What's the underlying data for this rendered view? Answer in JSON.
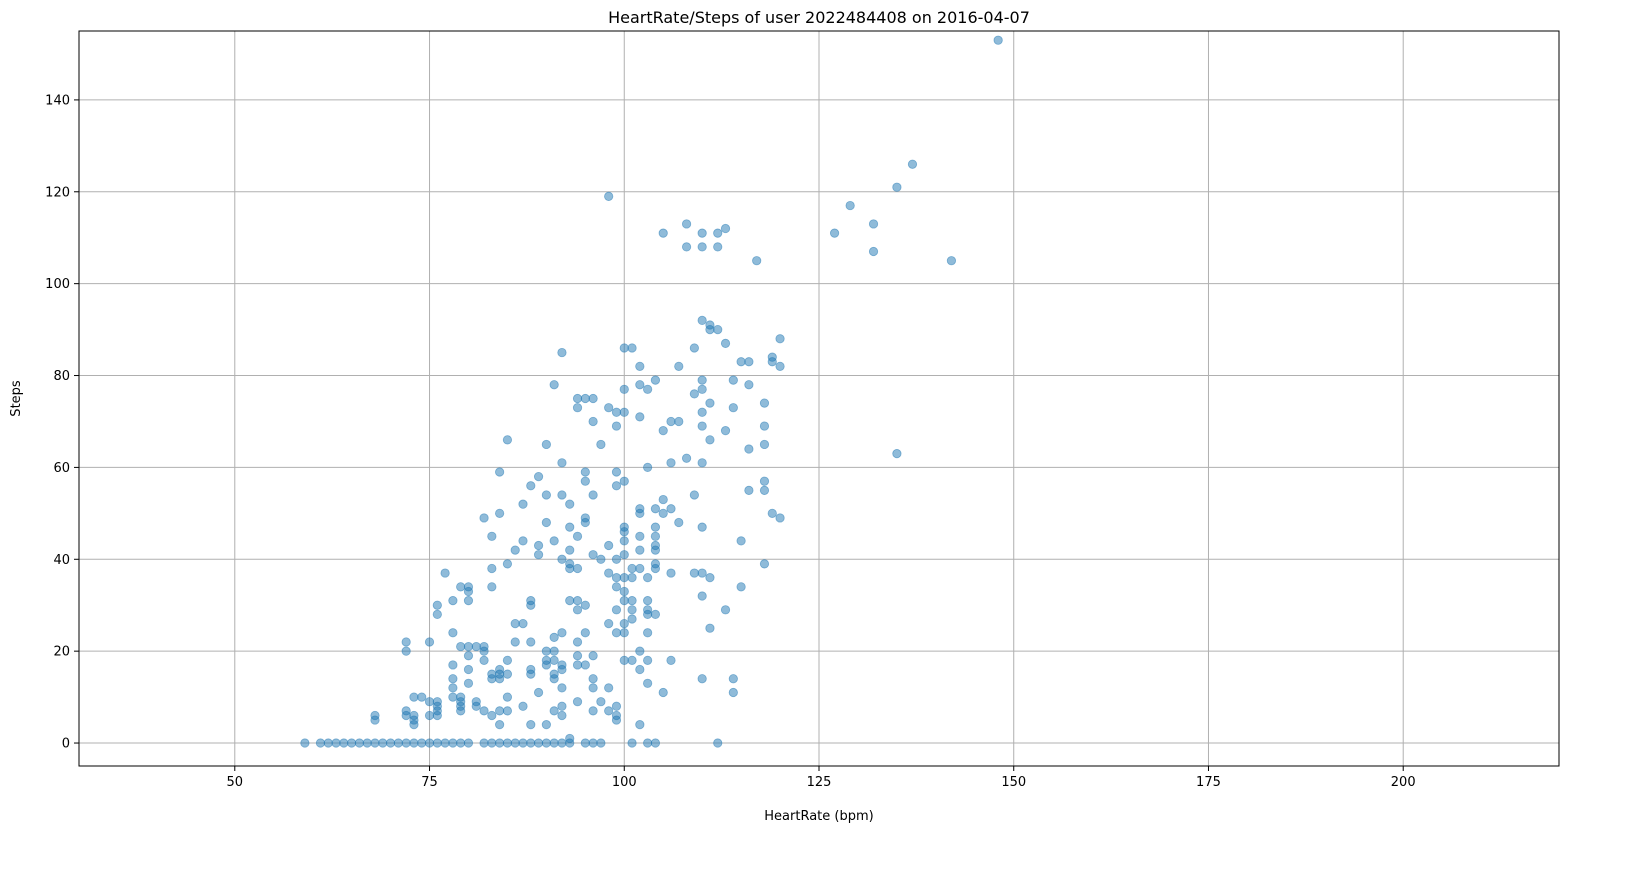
{
  "chart_data": {
    "type": "scatter",
    "title": "HeartRate/Steps of user 2022484408 on 2016-04-07",
    "xlabel": "HeartRate (bpm)",
    "ylabel": "Steps",
    "xlim": [
      30,
      220
    ],
    "ylim": [
      -5,
      155
    ],
    "xticks": [
      50,
      75,
      100,
      125,
      150,
      175,
      200
    ],
    "yticks": [
      0,
      20,
      40,
      60,
      80,
      100,
      120,
      140
    ],
    "grid": true,
    "legend": "none",
    "marker_color": "#1f77b4",
    "marker_alpha": 0.5,
    "points": [
      [
        59,
        0
      ],
      [
        61,
        0
      ],
      [
        62,
        0
      ],
      [
        63,
        0
      ],
      [
        64,
        0
      ],
      [
        65,
        0
      ],
      [
        66,
        0
      ],
      [
        67,
        0
      ],
      [
        68,
        0
      ],
      [
        69,
        0
      ],
      [
        70,
        0
      ],
      [
        71,
        0
      ],
      [
        72,
        0
      ],
      [
        73,
        0
      ],
      [
        74,
        0
      ],
      [
        75,
        0
      ],
      [
        76,
        0
      ],
      [
        77,
        0
      ],
      [
        78,
        0
      ],
      [
        79,
        0
      ],
      [
        80,
        0
      ],
      [
        82,
        0
      ],
      [
        83,
        0
      ],
      [
        84,
        0
      ],
      [
        85,
        0
      ],
      [
        86,
        0
      ],
      [
        87,
        0
      ],
      [
        88,
        0
      ],
      [
        89,
        0
      ],
      [
        90,
        0
      ],
      [
        91,
        0
      ],
      [
        92,
        0
      ],
      [
        93,
        0
      ],
      [
        95,
        0
      ],
      [
        96,
        0
      ],
      [
        97,
        0
      ],
      [
        101,
        0
      ],
      [
        103,
        0
      ],
      [
        104,
        0
      ],
      [
        112,
        0
      ],
      [
        68,
        5
      ],
      [
        68,
        6
      ],
      [
        72,
        6
      ],
      [
        72,
        7
      ],
      [
        72,
        20
      ],
      [
        72,
        22
      ],
      [
        73,
        4
      ],
      [
        73,
        5
      ],
      [
        73,
        6
      ],
      [
        73,
        10
      ],
      [
        74,
        10
      ],
      [
        75,
        6
      ],
      [
        75,
        9
      ],
      [
        75,
        22
      ],
      [
        76,
        6
      ],
      [
        76,
        7
      ],
      [
        76,
        8
      ],
      [
        76,
        9
      ],
      [
        76,
        28
      ],
      [
        76,
        30
      ],
      [
        77,
        37
      ],
      [
        78,
        10
      ],
      [
        78,
        12
      ],
      [
        78,
        14
      ],
      [
        78,
        17
      ],
      [
        78,
        24
      ],
      [
        78,
        31
      ],
      [
        79,
        7
      ],
      [
        79,
        8
      ],
      [
        79,
        9
      ],
      [
        79,
        10
      ],
      [
        79,
        21
      ],
      [
        79,
        34
      ],
      [
        80,
        13
      ],
      [
        80,
        16
      ],
      [
        80,
        19
      ],
      [
        80,
        21
      ],
      [
        80,
        31
      ],
      [
        80,
        33
      ],
      [
        80,
        34
      ],
      [
        81,
        8
      ],
      [
        81,
        9
      ],
      [
        81,
        21
      ],
      [
        82,
        7
      ],
      [
        82,
        18
      ],
      [
        82,
        20
      ],
      [
        82,
        21
      ],
      [
        82,
        49
      ],
      [
        83,
        6
      ],
      [
        83,
        14
      ],
      [
        83,
        15
      ],
      [
        83,
        34
      ],
      [
        83,
        38
      ],
      [
        83,
        45
      ],
      [
        84,
        4
      ],
      [
        84,
        7
      ],
      [
        84,
        14
      ],
      [
        84,
        15
      ],
      [
        84,
        16
      ],
      [
        84,
        50
      ],
      [
        84,
        59
      ],
      [
        85,
        7
      ],
      [
        85,
        10
      ],
      [
        85,
        15
      ],
      [
        85,
        18
      ],
      [
        85,
        39
      ],
      [
        85,
        66
      ],
      [
        86,
        22
      ],
      [
        86,
        26
      ],
      [
        86,
        42
      ],
      [
        87,
        8
      ],
      [
        87,
        26
      ],
      [
        87,
        44
      ],
      [
        87,
        52
      ],
      [
        88,
        4
      ],
      [
        88,
        15
      ],
      [
        88,
        16
      ],
      [
        88,
        22
      ],
      [
        88,
        30
      ],
      [
        88,
        31
      ],
      [
        88,
        56
      ],
      [
        89,
        11
      ],
      [
        89,
        41
      ],
      [
        89,
        43
      ],
      [
        89,
        58
      ],
      [
        90,
        4
      ],
      [
        90,
        17
      ],
      [
        90,
        18
      ],
      [
        90,
        20
      ],
      [
        90,
        48
      ],
      [
        90,
        54
      ],
      [
        90,
        65
      ],
      [
        91,
        7
      ],
      [
        91,
        14
      ],
      [
        91,
        15
      ],
      [
        91,
        18
      ],
      [
        91,
        20
      ],
      [
        91,
        23
      ],
      [
        91,
        44
      ],
      [
        91,
        78
      ],
      [
        92,
        6
      ],
      [
        92,
        8
      ],
      [
        92,
        12
      ],
      [
        92,
        16
      ],
      [
        92,
        17
      ],
      [
        92,
        24
      ],
      [
        92,
        40
      ],
      [
        92,
        54
      ],
      [
        92,
        61
      ],
      [
        92,
        85
      ],
      [
        93,
        1
      ],
      [
        93,
        31
      ],
      [
        93,
        38
      ],
      [
        93,
        39
      ],
      [
        93,
        42
      ],
      [
        93,
        47
      ],
      [
        93,
        52
      ],
      [
        94,
        9
      ],
      [
        94,
        17
      ],
      [
        94,
        19
      ],
      [
        94,
        22
      ],
      [
        94,
        29
      ],
      [
        94,
        31
      ],
      [
        94,
        38
      ],
      [
        94,
        45
      ],
      [
        94,
        73
      ],
      [
        94,
        75
      ],
      [
        95,
        17
      ],
      [
        95,
        24
      ],
      [
        95,
        30
      ],
      [
        95,
        48
      ],
      [
        95,
        49
      ],
      [
        95,
        57
      ],
      [
        95,
        59
      ],
      [
        95,
        75
      ],
      [
        96,
        7
      ],
      [
        96,
        12
      ],
      [
        96,
        14
      ],
      [
        96,
        19
      ],
      [
        96,
        41
      ],
      [
        96,
        54
      ],
      [
        96,
        70
      ],
      [
        96,
        75
      ],
      [
        97,
        9
      ],
      [
        97,
        40
      ],
      [
        97,
        65
      ],
      [
        98,
        7
      ],
      [
        98,
        12
      ],
      [
        98,
        26
      ],
      [
        98,
        37
      ],
      [
        98,
        43
      ],
      [
        98,
        73
      ],
      [
        98,
        119
      ],
      [
        99,
        5
      ],
      [
        99,
        6
      ],
      [
        99,
        8
      ],
      [
        99,
        24
      ],
      [
        99,
        29
      ],
      [
        99,
        34
      ],
      [
        99,
        36
      ],
      [
        99,
        40
      ],
      [
        99,
        56
      ],
      [
        99,
        59
      ],
      [
        99,
        69
      ],
      [
        99,
        72
      ],
      [
        100,
        18
      ],
      [
        100,
        24
      ],
      [
        100,
        26
      ],
      [
        100,
        31
      ],
      [
        100,
        33
      ],
      [
        100,
        36
      ],
      [
        100,
        41
      ],
      [
        100,
        44
      ],
      [
        100,
        46
      ],
      [
        100,
        47
      ],
      [
        100,
        57
      ],
      [
        100,
        72
      ],
      [
        100,
        77
      ],
      [
        100,
        86
      ],
      [
        101,
        18
      ],
      [
        101,
        27
      ],
      [
        101,
        29
      ],
      [
        101,
        31
      ],
      [
        101,
        36
      ],
      [
        101,
        38
      ],
      [
        101,
        86
      ],
      [
        102,
        4
      ],
      [
        102,
        16
      ],
      [
        102,
        20
      ],
      [
        102,
        38
      ],
      [
        102,
        42
      ],
      [
        102,
        45
      ],
      [
        102,
        50
      ],
      [
        102,
        51
      ],
      [
        102,
        71
      ],
      [
        102,
        78
      ],
      [
        102,
        82
      ],
      [
        103,
        13
      ],
      [
        103,
        18
      ],
      [
        103,
        24
      ],
      [
        103,
        28
      ],
      [
        103,
        29
      ],
      [
        103,
        31
      ],
      [
        103,
        36
      ],
      [
        103,
        60
      ],
      [
        103,
        77
      ],
      [
        104,
        28
      ],
      [
        104,
        38
      ],
      [
        104,
        39
      ],
      [
        104,
        42
      ],
      [
        104,
        43
      ],
      [
        104,
        45
      ],
      [
        104,
        47
      ],
      [
        104,
        51
      ],
      [
        104,
        79
      ],
      [
        105,
        11
      ],
      [
        105,
        50
      ],
      [
        105,
        53
      ],
      [
        105,
        68
      ],
      [
        105,
        111
      ],
      [
        106,
        18
      ],
      [
        106,
        37
      ],
      [
        106,
        51
      ],
      [
        106,
        61
      ],
      [
        106,
        70
      ],
      [
        107,
        48
      ],
      [
        107,
        70
      ],
      [
        107,
        82
      ],
      [
        108,
        62
      ],
      [
        108,
        108
      ],
      [
        108,
        113
      ],
      [
        109,
        37
      ],
      [
        109,
        54
      ],
      [
        109,
        76
      ],
      [
        109,
        86
      ],
      [
        110,
        14
      ],
      [
        110,
        32
      ],
      [
        110,
        37
      ],
      [
        110,
        47
      ],
      [
        110,
        61
      ],
      [
        110,
        69
      ],
      [
        110,
        72
      ],
      [
        110,
        77
      ],
      [
        110,
        79
      ],
      [
        110,
        92
      ],
      [
        110,
        108
      ],
      [
        110,
        111
      ],
      [
        111,
        25
      ],
      [
        111,
        36
      ],
      [
        111,
        66
      ],
      [
        111,
        74
      ],
      [
        111,
        90
      ],
      [
        111,
        91
      ],
      [
        112,
        90
      ],
      [
        112,
        108
      ],
      [
        112,
        111
      ],
      [
        113,
        29
      ],
      [
        113,
        68
      ],
      [
        113,
        87
      ],
      [
        113,
        112
      ],
      [
        114,
        11
      ],
      [
        114,
        14
      ],
      [
        114,
        73
      ],
      [
        114,
        79
      ],
      [
        115,
        34
      ],
      [
        115,
        44
      ],
      [
        115,
        83
      ],
      [
        116,
        55
      ],
      [
        116,
        64
      ],
      [
        116,
        78
      ],
      [
        116,
        83
      ],
      [
        117,
        105
      ],
      [
        118,
        39
      ],
      [
        118,
        55
      ],
      [
        118,
        57
      ],
      [
        118,
        65
      ],
      [
        118,
        69
      ],
      [
        118,
        74
      ],
      [
        119,
        50
      ],
      [
        119,
        83
      ],
      [
        119,
        84
      ],
      [
        120,
        49
      ],
      [
        120,
        82
      ],
      [
        120,
        88
      ],
      [
        127,
        111
      ],
      [
        129,
        117
      ],
      [
        132,
        107
      ],
      [
        132,
        113
      ],
      [
        135,
        63
      ],
      [
        135,
        121
      ],
      [
        137,
        126
      ],
      [
        142,
        105
      ],
      [
        148,
        153
      ]
    ]
  }
}
